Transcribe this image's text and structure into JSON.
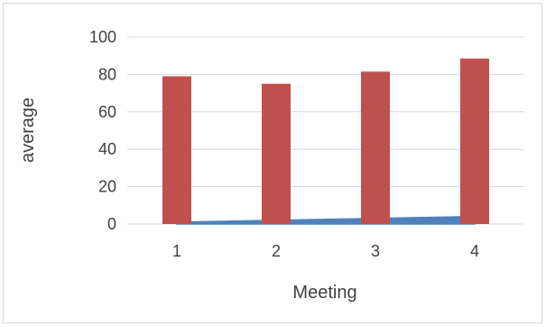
{
  "chart_data": {
    "type": "bar",
    "title": "",
    "xlabel": "Meeting",
    "ylabel": "average",
    "categories": [
      "1",
      "2",
      "3",
      "4"
    ],
    "ylim": [
      0,
      100
    ],
    "yticks": [
      0,
      20,
      40,
      60,
      80,
      100
    ],
    "grid": true,
    "legend": "none",
    "series": [
      {
        "kind": "line",
        "color": "#4f81bd",
        "values": [
          1,
          2,
          3,
          4
        ]
      },
      {
        "kind": "bar",
        "color": "#c0504d",
        "values": [
          79,
          75,
          81.5,
          88.5
        ]
      }
    ]
  }
}
